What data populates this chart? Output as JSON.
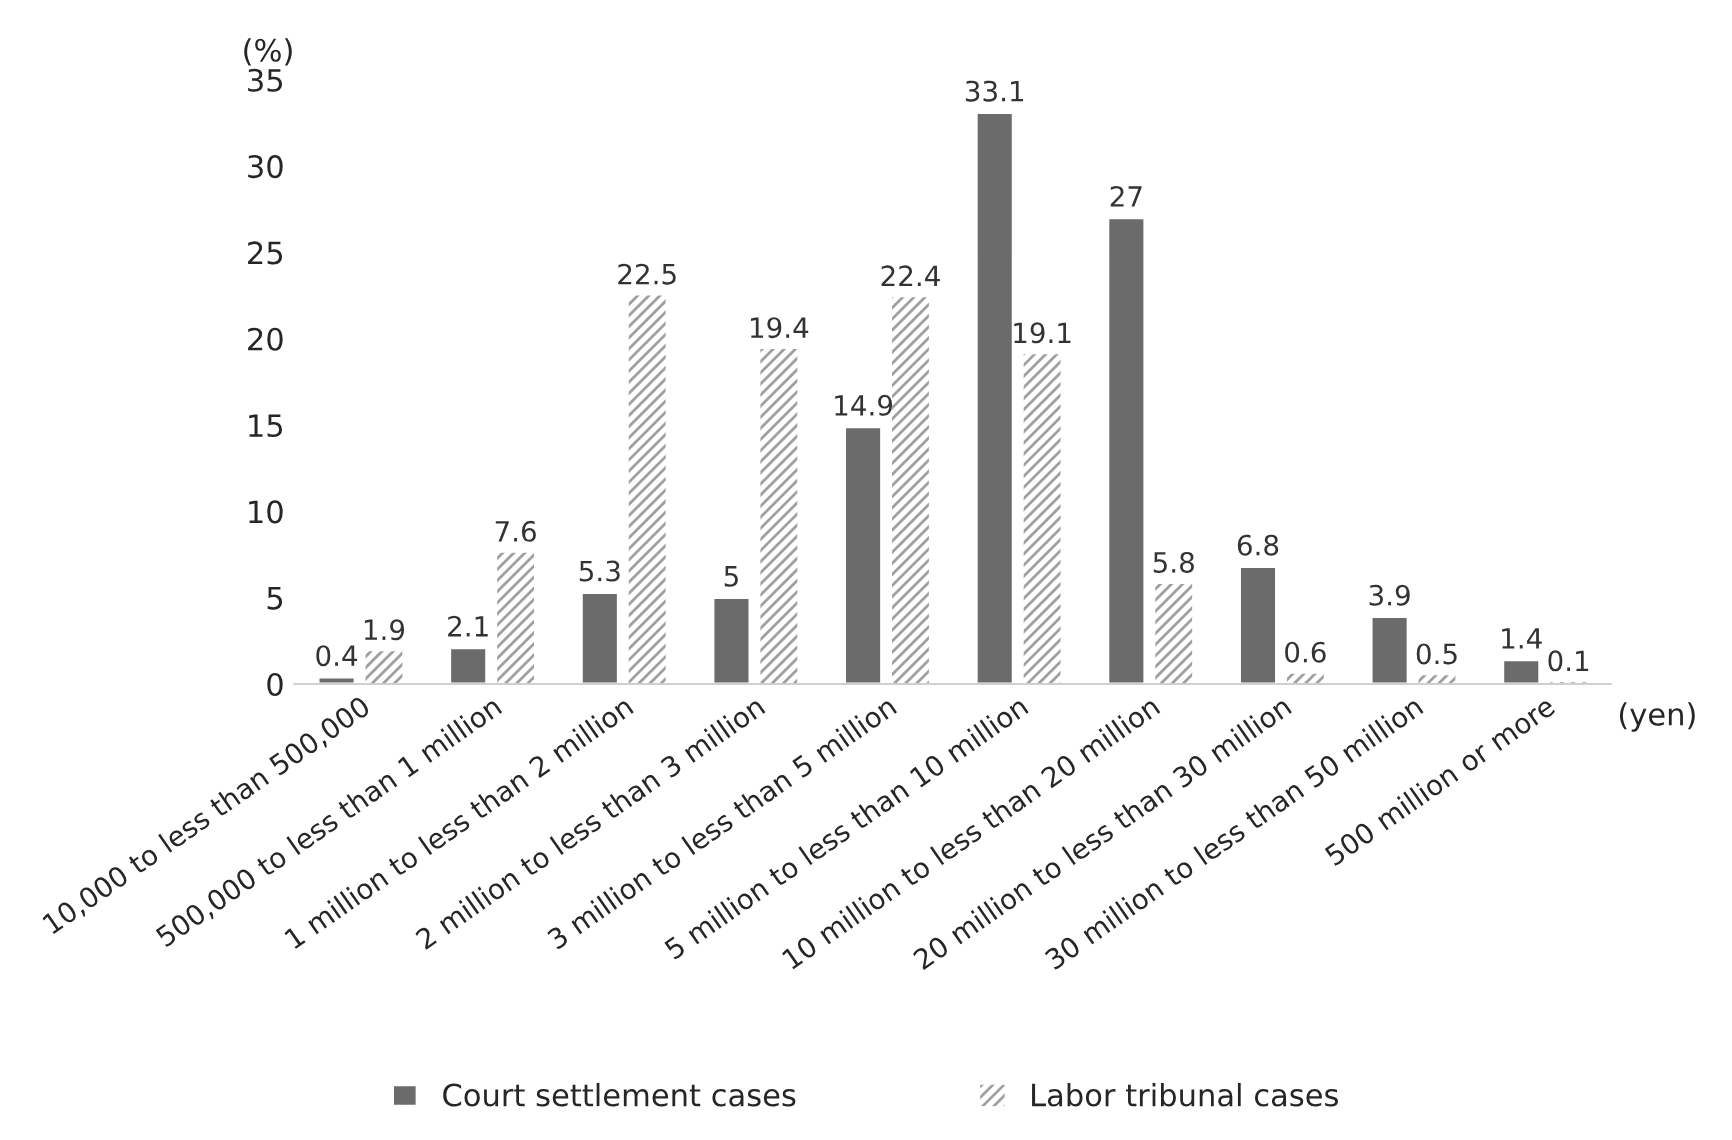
{
  "chart_data": {
    "type": "bar",
    "ylabel": "(%)",
    "xlabel": "(yen)",
    "categories": [
      "10,000 to less than 500,000",
      "500,000 to less than 1 million",
      "1 million to less than 2 million",
      "2 million to less than 3 million",
      "3 million to less than 5 million",
      "5 million to less than 10 million",
      "10 million to less than 20 million",
      "20 million to less than 30 million",
      "30 million to less than 50 million",
      "500 million or more"
    ],
    "series": [
      {
        "name": "Court settlement cases",
        "color": "#6b6b6b",
        "values": [
          0.4,
          2.1,
          5.3,
          5,
          14.9,
          33.1,
          27,
          6.8,
          3.9,
          1.4
        ]
      },
      {
        "name": "Labor tribunal cases",
        "color": "#a0a0a0",
        "values": [
          1.9,
          7.6,
          22.5,
          19.4,
          22.4,
          19.1,
          5.8,
          0.6,
          0.5,
          0.1
        ]
      }
    ],
    "ylim": [
      0,
      35
    ],
    "yticks": [
      0,
      5,
      10,
      15,
      20,
      25,
      30,
      35
    ],
    "grid": false,
    "legend": "bottom",
    "data_labels": true
  }
}
